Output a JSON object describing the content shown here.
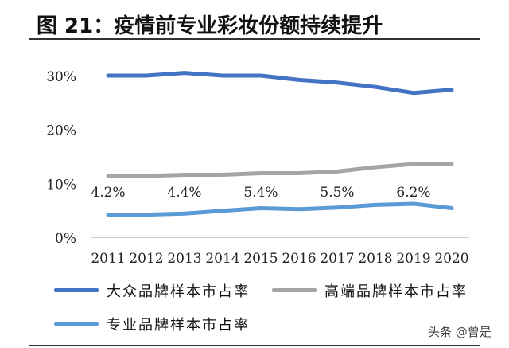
{
  "figure": {
    "title": "图 21：疫情前专业彩妆份额持续提升",
    "watermark": "头条 @曾是"
  },
  "chart_data": {
    "type": "line",
    "x": [
      "2011",
      "2012",
      "2013",
      "2014",
      "2015",
      "2016",
      "2017",
      "2018",
      "2019",
      "2020"
    ],
    "yticks": [
      "0%",
      "10%",
      "20%",
      "30%"
    ],
    "ylim": [
      0,
      35
    ],
    "grid": false,
    "legend_position": "bottom",
    "series": [
      {
        "name": "大众品牌样本市占率",
        "color": "#4472C4",
        "values": [
          30.0,
          30.0,
          30.5,
          30.0,
          30.0,
          29.2,
          28.7,
          27.9,
          26.8,
          27.4
        ]
      },
      {
        "name": "高端品牌样本市占率",
        "color": "#A5A5A5",
        "values": [
          11.4,
          11.4,
          11.6,
          11.6,
          11.9,
          11.9,
          12.2,
          13.0,
          13.6,
          13.6
        ]
      },
      {
        "name": "专业品牌样本市占率",
        "color": "#5B9BD5",
        "values": [
          4.2,
          4.2,
          4.4,
          4.9,
          5.4,
          5.2,
          5.5,
          6.0,
          6.2,
          5.4
        ]
      }
    ],
    "annotations": [
      {
        "x": "2011",
        "text": "4.2%"
      },
      {
        "x": "2013",
        "text": "4.4%"
      },
      {
        "x": "2015",
        "text": "5.4%"
      },
      {
        "x": "2017",
        "text": "5.5%"
      },
      {
        "x": "2019",
        "text": "6.2%"
      }
    ]
  }
}
